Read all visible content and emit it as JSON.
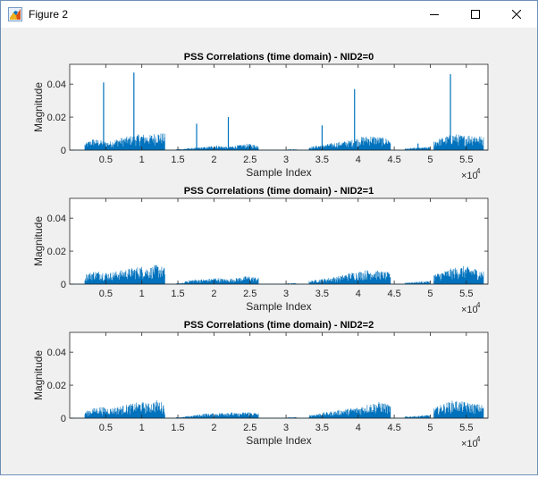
{
  "window": {
    "title": "Figure 2",
    "icon": "matlab-figure-icon",
    "controls": [
      "minimize-icon",
      "maximize-icon",
      "close-icon"
    ]
  },
  "axis_common": {
    "xlabel": "Sample Index",
    "ylabel": "Magnitude",
    "xticks": [
      0.5,
      1,
      1.5,
      2,
      2.5,
      3,
      3.5,
      4,
      4.5,
      5,
      5.5
    ],
    "xtick_labels": [
      "0.5",
      "1",
      "1.5",
      "2",
      "2.5",
      "3",
      "3.5",
      "4",
      "4.5",
      "5",
      "5.5"
    ],
    "x_exponent_base": "×10",
    "x_exponent_power": "4",
    "yticks": [
      0,
      0.02,
      0.04
    ],
    "ytick_labels": [
      "0",
      "0.02",
      "0.04"
    ]
  },
  "chart_data": [
    {
      "type": "line",
      "title": "PSS Correlations (time domain) - NID2=0",
      "xlabel": "Sample Index",
      "ylabel": "Magnitude",
      "xlim": [
        0,
        58000
      ],
      "ylim": [
        0,
        0.052
      ],
      "x_scale_note": "×10^4",
      "color": "#0072BD",
      "segments": [
        {
          "start": 2100,
          "end": 13200,
          "envelope": [
            0.004,
            0.007,
            0.006,
            0.005,
            0.007,
            0.008,
            0.009,
            0.01,
            0.009,
            0.011,
            0.01
          ]
        },
        {
          "start": 14800,
          "end": 16000,
          "envelope": [
            0.0006,
            0.0008
          ]
        },
        {
          "start": 16000,
          "end": 26200,
          "envelope": [
            0.001,
            0.0015,
            0.002,
            0.003,
            0.002,
            0.003,
            0.004,
            0.003
          ]
        },
        {
          "start": 30000,
          "end": 31500,
          "envelope": [
            0.0005,
            0.0006
          ]
        },
        {
          "start": 33200,
          "end": 44500,
          "envelope": [
            0.002,
            0.003,
            0.004,
            0.005,
            0.006,
            0.008,
            0.009,
            0.008,
            0.007
          ]
        },
        {
          "start": 46500,
          "end": 50000,
          "envelope": [
            0.001,
            0.0015,
            0.002
          ]
        },
        {
          "start": 50500,
          "end": 57400,
          "envelope": [
            0.006,
            0.008,
            0.01,
            0.009,
            0.01,
            0.008
          ]
        }
      ],
      "peaks": [
        {
          "x": 4700,
          "y": 0.041
        },
        {
          "x": 8900,
          "y": 0.047
        },
        {
          "x": 17600,
          "y": 0.016
        },
        {
          "x": 22000,
          "y": 0.02
        },
        {
          "x": 35000,
          "y": 0.015
        },
        {
          "x": 39500,
          "y": 0.037
        },
        {
          "x": 48300,
          "y": 0.004
        },
        {
          "x": 52800,
          "y": 0.046
        }
      ]
    },
    {
      "type": "line",
      "title": "PSS Correlations (time domain) - NID2=1",
      "xlabel": "Sample Index",
      "ylabel": "Magnitude",
      "xlim": [
        0,
        58000
      ],
      "ylim": [
        0,
        0.052
      ],
      "x_scale_note": "×10^4",
      "color": "#0072BD",
      "segments": [
        {
          "start": 2100,
          "end": 13200,
          "envelope": [
            0.006,
            0.008,
            0.008,
            0.007,
            0.008,
            0.009,
            0.01,
            0.011,
            0.01,
            0.012,
            0.01
          ]
        },
        {
          "start": 14800,
          "end": 16000,
          "envelope": [
            0.0006,
            0.0008
          ]
        },
        {
          "start": 16000,
          "end": 26200,
          "envelope": [
            0.002,
            0.003,
            0.003,
            0.004,
            0.003,
            0.004,
            0.005,
            0.004
          ]
        },
        {
          "start": 30000,
          "end": 31500,
          "envelope": [
            0.0005,
            0.0006
          ]
        },
        {
          "start": 33200,
          "end": 44500,
          "envelope": [
            0.002,
            0.003,
            0.004,
            0.005,
            0.007,
            0.008,
            0.009,
            0.008,
            0.007
          ]
        },
        {
          "start": 46500,
          "end": 50000,
          "envelope": [
            0.001,
            0.0015,
            0.002
          ]
        },
        {
          "start": 50500,
          "end": 57400,
          "envelope": [
            0.006,
            0.008,
            0.01,
            0.011,
            0.01,
            0.008
          ]
        }
      ],
      "peaks": []
    },
    {
      "type": "line",
      "title": "PSS Correlations (time domain) - NID2=2",
      "xlabel": "Sample Index",
      "ylabel": "Magnitude",
      "xlim": [
        0,
        58000
      ],
      "ylim": [
        0,
        0.052
      ],
      "x_scale_note": "×10^4",
      "color": "#0072BD",
      "segments": [
        {
          "start": 2100,
          "end": 13200,
          "envelope": [
            0.004,
            0.006,
            0.007,
            0.006,
            0.007,
            0.008,
            0.009,
            0.01,
            0.009,
            0.011,
            0.009
          ]
        },
        {
          "start": 14800,
          "end": 16000,
          "envelope": [
            0.0006,
            0.0008
          ]
        },
        {
          "start": 16000,
          "end": 26200,
          "envelope": [
            0.001,
            0.002,
            0.003,
            0.003,
            0.004,
            0.003,
            0.004,
            0.003
          ]
        },
        {
          "start": 30000,
          "end": 31500,
          "envelope": [
            0.0005,
            0.0006
          ]
        },
        {
          "start": 33200,
          "end": 44500,
          "envelope": [
            0.002,
            0.003,
            0.004,
            0.005,
            0.006,
            0.007,
            0.009,
            0.01,
            0.008
          ]
        },
        {
          "start": 46500,
          "end": 50000,
          "envelope": [
            0.001,
            0.0015,
            0.002
          ]
        },
        {
          "start": 50500,
          "end": 57400,
          "envelope": [
            0.006,
            0.009,
            0.011,
            0.01,
            0.009,
            0.008
          ]
        }
      ],
      "peaks": []
    }
  ]
}
